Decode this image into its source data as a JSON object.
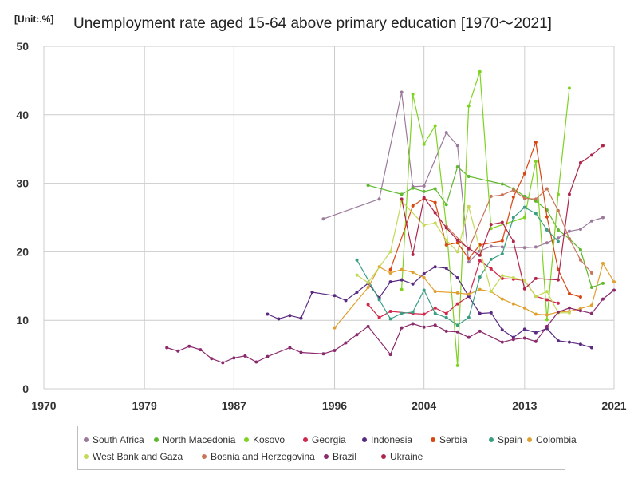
{
  "unit_label": "[Unit:.%]",
  "chart_data": {
    "type": "line",
    "title": "Unemployment rate aged 15-64 above primary education [1970～2021]",
    "xlabel": "",
    "ylabel": "",
    "xlim": [
      1970,
      2021
    ],
    "ylim": [
      0,
      50
    ],
    "x_ticks": [
      "1970",
      "1979",
      "1987",
      "1996",
      "2004",
      "2013",
      "2021"
    ],
    "y_ticks": [
      "0",
      "10",
      "20",
      "30",
      "40",
      "50"
    ],
    "grid": true,
    "legend_position": "bottom",
    "series": [
      {
        "name": "South Africa",
        "color": "#9b7a9b",
        "points": [
          [
            1995,
            24.8
          ],
          [
            2000,
            27.7
          ],
          [
            2002,
            43.3
          ],
          [
            2003,
            29.5
          ],
          [
            2004,
            29.6
          ],
          [
            2006,
            37.4
          ],
          [
            2007,
            35.5
          ],
          [
            2008,
            18.5
          ],
          [
            2009,
            20.1
          ],
          [
            2010,
            20.8
          ],
          [
            2011,
            20.7
          ],
          [
            2013,
            20.6
          ],
          [
            2014,
            20.7
          ],
          [
            2015,
            21.3
          ],
          [
            2016,
            22.0
          ],
          [
            2017,
            23.0
          ],
          [
            2018,
            23.3
          ],
          [
            2019,
            24.5
          ],
          [
            2020,
            25.0
          ]
        ]
      },
      {
        "name": "North Macedonia",
        "color": "#5fb82e",
        "points": [
          [
            1999,
            29.7
          ],
          [
            2002,
            28.4
          ],
          [
            2003,
            29.3
          ],
          [
            2004,
            28.8
          ],
          [
            2005,
            29.2
          ],
          [
            2006,
            26.9
          ],
          [
            2007,
            32.4
          ],
          [
            2008,
            31.0
          ],
          [
            2011,
            29.9
          ],
          [
            2012,
            29.2
          ],
          [
            2013,
            28.1
          ],
          [
            2014,
            27.4
          ],
          [
            2015,
            26.1
          ],
          [
            2016,
            23.2
          ],
          [
            2017,
            21.9
          ],
          [
            2018,
            20.3
          ],
          [
            2019,
            14.8
          ],
          [
            2020,
            15.4
          ]
        ]
      },
      {
        "name": "Kosovo",
        "color": "#7ed321",
        "points": [
          [
            2002,
            14.5
          ],
          [
            2003,
            43.0
          ],
          [
            2004,
            35.7
          ],
          [
            2005,
            38.4
          ],
          [
            2006,
            23.7
          ],
          [
            2007,
            3.4
          ],
          [
            2008,
            41.3
          ],
          [
            2009,
            46.3
          ],
          [
            2010,
            23.4
          ],
          [
            2013,
            25.0
          ],
          [
            2014,
            33.2
          ],
          [
            2015,
            10.1
          ],
          [
            2016,
            28.4
          ],
          [
            2017,
            43.9
          ]
        ]
      },
      {
        "name": "Georgia",
        "color": "#d0274a",
        "points": [
          [
            1999,
            12.3
          ],
          [
            2000,
            10.4
          ],
          [
            2001,
            11.3
          ],
          [
            2003,
            11.0
          ],
          [
            2004,
            10.9
          ],
          [
            2005,
            11.8
          ],
          [
            2006,
            11.0
          ],
          [
            2007,
            12.4
          ],
          [
            2008,
            13.5
          ],
          [
            2009,
            18.7
          ],
          [
            2010,
            17.5
          ],
          [
            2011,
            16.1
          ],
          [
            2012,
            16.0
          ],
          [
            2013,
            15.8
          ],
          [
            2014,
            13.5
          ],
          [
            2015,
            13.0
          ],
          [
            2016,
            12.5
          ]
        ]
      },
      {
        "name": "Indonesia",
        "color": "#5a2a82",
        "points": [
          [
            1990,
            10.9
          ],
          [
            1991,
            10.2
          ],
          [
            1992,
            10.7
          ],
          [
            1993,
            10.3
          ],
          [
            1994,
            14.1
          ],
          [
            1996,
            13.6
          ],
          [
            1997,
            12.9
          ],
          [
            1998,
            14.1
          ],
          [
            1999,
            15.4
          ],
          [
            2000,
            13.3
          ],
          [
            2001,
            15.6
          ],
          [
            2002,
            15.9
          ],
          [
            2003,
            15.3
          ],
          [
            2004,
            16.8
          ],
          [
            2005,
            17.8
          ],
          [
            2006,
            17.6
          ],
          [
            2007,
            16.2
          ],
          [
            2008,
            13.5
          ],
          [
            2009,
            11.0
          ],
          [
            2010,
            11.1
          ],
          [
            2011,
            8.6
          ],
          [
            2012,
            7.5
          ],
          [
            2013,
            8.7
          ],
          [
            2014,
            8.2
          ],
          [
            2015,
            8.8
          ],
          [
            2016,
            7.0
          ],
          [
            2017,
            6.8
          ],
          [
            2018,
            6.5
          ],
          [
            2019,
            6.0
          ]
        ]
      },
      {
        "name": "Serbia",
        "color": "#d94712",
        "points": [
          [
            2001,
            17.4
          ],
          [
            2003,
            26.7
          ],
          [
            2004,
            27.8
          ],
          [
            2005,
            27.2
          ],
          [
            2006,
            21.0
          ],
          [
            2007,
            21.3
          ],
          [
            2008,
            19.0
          ],
          [
            2009,
            21.0
          ],
          [
            2011,
            21.6
          ],
          [
            2012,
            28.0
          ],
          [
            2013,
            31.4
          ],
          [
            2014,
            36.0
          ],
          [
            2015,
            25.1
          ],
          [
            2016,
            17.4
          ],
          [
            2017,
            13.9
          ],
          [
            2018,
            13.4
          ]
        ]
      },
      {
        "name": "Spain",
        "color": "#3a9e83",
        "points": [
          [
            1998,
            18.8
          ],
          [
            2000,
            13.0
          ],
          [
            2001,
            10.2
          ],
          [
            2002,
            11.0
          ],
          [
            2003,
            11.2
          ],
          [
            2004,
            14.4
          ],
          [
            2005,
            11.0
          ],
          [
            2006,
            10.4
          ],
          [
            2007,
            9.3
          ],
          [
            2008,
            10.4
          ],
          [
            2009,
            16.3
          ],
          [
            2010,
            18.9
          ],
          [
            2011,
            19.7
          ],
          [
            2012,
            25.0
          ],
          [
            2013,
            26.5
          ],
          [
            2014,
            25.6
          ],
          [
            2015,
            23.2
          ],
          [
            2016,
            21.5
          ]
        ]
      },
      {
        "name": "Colombia",
        "color": "#e0a030",
        "points": [
          [
            1996,
            8.9
          ],
          [
            1999,
            14.8
          ],
          [
            2000,
            17.8
          ],
          [
            2001,
            16.9
          ],
          [
            2002,
            17.4
          ],
          [
            2003,
            17.0
          ],
          [
            2004,
            16.2
          ],
          [
            2005,
            14.2
          ],
          [
            2007,
            14.0
          ],
          [
            2008,
            13.8
          ],
          [
            2009,
            14.5
          ],
          [
            2010,
            14.2
          ],
          [
            2011,
            13.1
          ],
          [
            2012,
            12.4
          ],
          [
            2013,
            11.8
          ],
          [
            2014,
            10.9
          ],
          [
            2015,
            10.8
          ],
          [
            2016,
            11.2
          ],
          [
            2017,
            11.3
          ],
          [
            2018,
            11.7
          ],
          [
            2019,
            12.2
          ],
          [
            2020,
            18.3
          ],
          [
            2021,
            15.6
          ]
        ]
      },
      {
        "name": "West Bank and Gaza",
        "color": "#c5d957",
        "points": [
          [
            1998,
            16.6
          ],
          [
            1999,
            15.5
          ],
          [
            2001,
            20.0
          ],
          [
            2002,
            27.4
          ],
          [
            2004,
            23.9
          ],
          [
            2005,
            24.2
          ],
          [
            2006,
            21.7
          ],
          [
            2007,
            20.0
          ],
          [
            2008,
            26.6
          ],
          [
            2010,
            14.2
          ],
          [
            2011,
            16.5
          ],
          [
            2012,
            16.2
          ],
          [
            2013,
            15.8
          ],
          [
            2014,
            13.5
          ],
          [
            2015,
            14.2
          ],
          [
            2016,
            11.1
          ],
          [
            2017,
            11.1
          ]
        ]
      },
      {
        "name": "Bosnia and Herzegovina",
        "color": "#c8745a",
        "points": [
          [
            2006,
            23.7
          ],
          [
            2008,
            20.4
          ],
          [
            2010,
            28.1
          ],
          [
            2011,
            28.3
          ],
          [
            2012,
            29.0
          ],
          [
            2013,
            27.8
          ],
          [
            2014,
            27.7
          ],
          [
            2015,
            29.2
          ],
          [
            2016,
            26.0
          ],
          [
            2017,
            21.9
          ],
          [
            2018,
            18.8
          ],
          [
            2019,
            16.9
          ]
        ]
      },
      {
        "name": "Brazil",
        "color": "#8a2a6c",
        "points": [
          [
            1981,
            6.0
          ],
          [
            1982,
            5.5
          ],
          [
            1983,
            6.2
          ],
          [
            1984,
            5.7
          ],
          [
            1985,
            4.4
          ],
          [
            1986,
            3.8
          ],
          [
            1987,
            4.5
          ],
          [
            1988,
            4.8
          ],
          [
            1989,
            3.9
          ],
          [
            1990,
            4.7
          ],
          [
            1992,
            6.0
          ],
          [
            1993,
            5.3
          ],
          [
            1995,
            5.1
          ],
          [
            1996,
            5.6
          ],
          [
            1997,
            6.7
          ],
          [
            1998,
            7.9
          ],
          [
            1999,
            9.1
          ],
          [
            2001,
            5.0
          ],
          [
            2002,
            8.9
          ],
          [
            2003,
            9.5
          ],
          [
            2004,
            9.0
          ],
          [
            2005,
            9.3
          ],
          [
            2006,
            8.4
          ],
          [
            2007,
            8.3
          ],
          [
            2008,
            7.5
          ],
          [
            2009,
            8.4
          ],
          [
            2011,
            6.8
          ],
          [
            2012,
            7.2
          ],
          [
            2013,
            7.4
          ],
          [
            2014,
            6.9
          ],
          [
            2015,
            9.1
          ],
          [
            2016,
            11.2
          ],
          [
            2017,
            11.8
          ],
          [
            2018,
            11.4
          ],
          [
            2019,
            11.0
          ],
          [
            2020,
            13.1
          ],
          [
            2021,
            14.4
          ]
        ]
      },
      {
        "name": "Ukraine",
        "color": "#b0264a",
        "points": [
          [
            2002,
            27.7
          ],
          [
            2003,
            19.6
          ],
          [
            2004,
            27.9
          ],
          [
            2005,
            25.7
          ],
          [
            2006,
            23.5
          ],
          [
            2007,
            21.7
          ],
          [
            2008,
            20.5
          ],
          [
            2009,
            19.5
          ],
          [
            2010,
            24.0
          ],
          [
            2011,
            24.3
          ],
          [
            2012,
            21.5
          ],
          [
            2013,
            14.6
          ],
          [
            2014,
            16.1
          ],
          [
            2016,
            15.9
          ],
          [
            2017,
            28.4
          ],
          [
            2018,
            33.0
          ],
          [
            2019,
            34.1
          ],
          [
            2020,
            35.5
          ]
        ]
      }
    ]
  }
}
